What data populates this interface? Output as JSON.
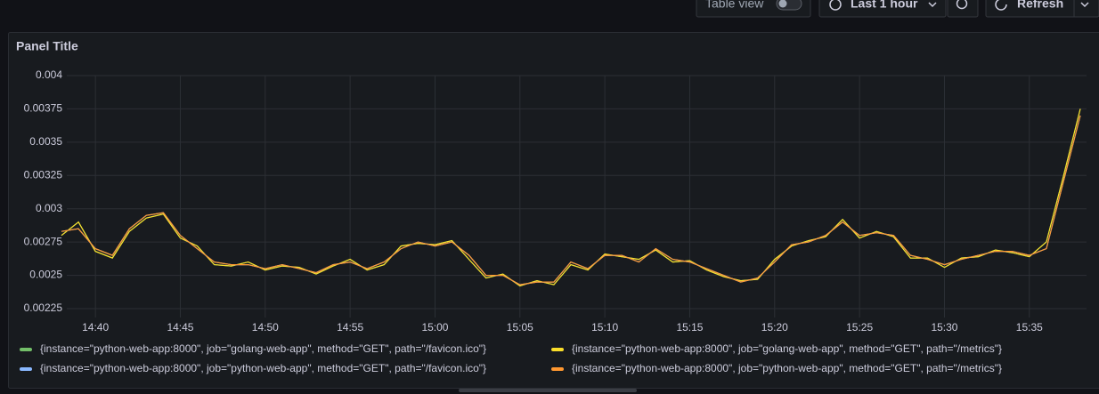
{
  "toolbar": {
    "table_view": "Table view",
    "time_range": "Last 1 hour",
    "refresh": "Refresh"
  },
  "chart_data": {
    "type": "line",
    "title": "Panel Title",
    "x": [
      "14:38",
      "14:39",
      "14:40",
      "14:41",
      "14:42",
      "14:43",
      "14:44",
      "14:45",
      "14:46",
      "14:47",
      "14:48",
      "14:49",
      "14:50",
      "14:51",
      "14:52",
      "14:53",
      "14:54",
      "14:55",
      "14:56",
      "14:57",
      "14:58",
      "14:59",
      "15:00",
      "15:01",
      "15:02",
      "15:03",
      "15:04",
      "15:05",
      "15:06",
      "15:07",
      "15:08",
      "15:09",
      "15:10",
      "15:11",
      "15:12",
      "15:13",
      "15:14",
      "15:15",
      "15:16",
      "15:17",
      "15:18",
      "15:19",
      "15:20",
      "15:21",
      "15:22",
      "15:23",
      "15:24",
      "15:25",
      "15:26",
      "15:27",
      "15:28",
      "15:29",
      "15:30",
      "15:31",
      "15:32",
      "15:33",
      "15:34",
      "15:35",
      "15:36",
      "15:37",
      "15:38"
    ],
    "xlim": [
      "14:38",
      "15:38"
    ],
    "xticks": [
      "14:40",
      "14:45",
      "14:50",
      "14:55",
      "15:00",
      "15:05",
      "15:10",
      "15:15",
      "15:20",
      "15:25",
      "15:30",
      "15:35"
    ],
    "ylim": [
      0.00225,
      0.004
    ],
    "yticks": [
      0.00225,
      0.0025,
      0.00275,
      0.003,
      0.00325,
      0.0035,
      0.00375,
      0.004
    ],
    "grid": true,
    "series": [
      {
        "name": "{instance=\"python-web-app:8000\", job=\"golang-web-app\", method=\"GET\", path=\"/favicon.ico\"}",
        "color": "#73bf69",
        "values": [
          0.0028,
          0.0029,
          0.00268,
          0.00263,
          0.00283,
          0.00293,
          0.00296,
          0.00278,
          0.00272,
          0.00258,
          0.00257,
          0.0026,
          0.00254,
          0.00257,
          0.00256,
          0.00251,
          0.00257,
          0.00262,
          0.00254,
          0.00258,
          0.00272,
          0.00274,
          0.00273,
          0.00276,
          0.00262,
          0.00248,
          0.00251,
          0.00242,
          0.00246,
          0.00243,
          0.00258,
          0.00254,
          0.00266,
          0.00264,
          0.00262,
          0.00269,
          0.0026,
          0.00261,
          0.00254,
          0.00249,
          0.00246,
          0.00247,
          0.00262,
          0.00272,
          0.00276,
          0.00279,
          0.00292,
          0.00278,
          0.00283,
          0.00279,
          0.00263,
          0.00263,
          0.00256,
          0.00263,
          0.00264,
          0.00269,
          0.00267,
          0.00264,
          0.00275,
          0.00324,
          0.00375
        ]
      },
      {
        "name": "{instance=\"python-web-app:8000\", job=\"golang-web-app\", method=\"GET\", path=\"/metrics\"}",
        "color": "#fade2a",
        "values": [
          0.0028,
          0.0029,
          0.00268,
          0.00263,
          0.00283,
          0.00293,
          0.00296,
          0.00278,
          0.00272,
          0.00258,
          0.00257,
          0.0026,
          0.00254,
          0.00257,
          0.00256,
          0.00251,
          0.00257,
          0.00262,
          0.00254,
          0.00258,
          0.00272,
          0.00274,
          0.00273,
          0.00276,
          0.00262,
          0.00248,
          0.00251,
          0.00242,
          0.00246,
          0.00243,
          0.00258,
          0.00254,
          0.00266,
          0.00264,
          0.00262,
          0.00269,
          0.0026,
          0.00261,
          0.00254,
          0.00249,
          0.00246,
          0.00247,
          0.00262,
          0.00272,
          0.00276,
          0.00279,
          0.00292,
          0.00278,
          0.00283,
          0.00279,
          0.00263,
          0.00263,
          0.00256,
          0.00263,
          0.00264,
          0.00269,
          0.00267,
          0.00264,
          0.00275,
          0.00324,
          0.00375
        ]
      },
      {
        "name": "{instance=\"python-web-app:8000\", job=\"python-web-app\", method=\"GET\", path=\"/favicon.ico\"}",
        "color": "#8ab8ff",
        "values": [
          0.00283,
          0.00285,
          0.0027,
          0.00265,
          0.00285,
          0.00295,
          0.00297,
          0.0028,
          0.0027,
          0.0026,
          0.00258,
          0.00258,
          0.00255,
          0.00258,
          0.00255,
          0.00252,
          0.00258,
          0.0026,
          0.00255,
          0.0026,
          0.0027,
          0.00275,
          0.00272,
          0.00275,
          0.00265,
          0.0025,
          0.0025,
          0.00243,
          0.00245,
          0.00245,
          0.0026,
          0.00255,
          0.00265,
          0.00265,
          0.0026,
          0.0027,
          0.00262,
          0.0026,
          0.00255,
          0.0025,
          0.00245,
          0.00248,
          0.0026,
          0.00273,
          0.00275,
          0.0028,
          0.0029,
          0.0028,
          0.00282,
          0.0028,
          0.00265,
          0.00262,
          0.00258,
          0.00262,
          0.00265,
          0.00268,
          0.00268,
          0.00265,
          0.0027,
          0.0032,
          0.0037
        ]
      },
      {
        "name": "{instance=\"python-web-app:8000\", job=\"python-web-app\", method=\"GET\", path=\"/metrics\"}",
        "color": "#ff9830",
        "values": [
          0.00283,
          0.00285,
          0.0027,
          0.00265,
          0.00285,
          0.00295,
          0.00297,
          0.0028,
          0.0027,
          0.0026,
          0.00258,
          0.00258,
          0.00255,
          0.00258,
          0.00255,
          0.00252,
          0.00258,
          0.0026,
          0.00255,
          0.0026,
          0.0027,
          0.00275,
          0.00272,
          0.00275,
          0.00265,
          0.0025,
          0.0025,
          0.00243,
          0.00245,
          0.00245,
          0.0026,
          0.00255,
          0.00265,
          0.00265,
          0.0026,
          0.0027,
          0.00262,
          0.0026,
          0.00255,
          0.0025,
          0.00245,
          0.00248,
          0.0026,
          0.00273,
          0.00275,
          0.0028,
          0.0029,
          0.0028,
          0.00282,
          0.0028,
          0.00265,
          0.00262,
          0.00258,
          0.00262,
          0.00265,
          0.00268,
          0.00268,
          0.00265,
          0.0027,
          0.0032,
          0.0037
        ]
      }
    ]
  }
}
